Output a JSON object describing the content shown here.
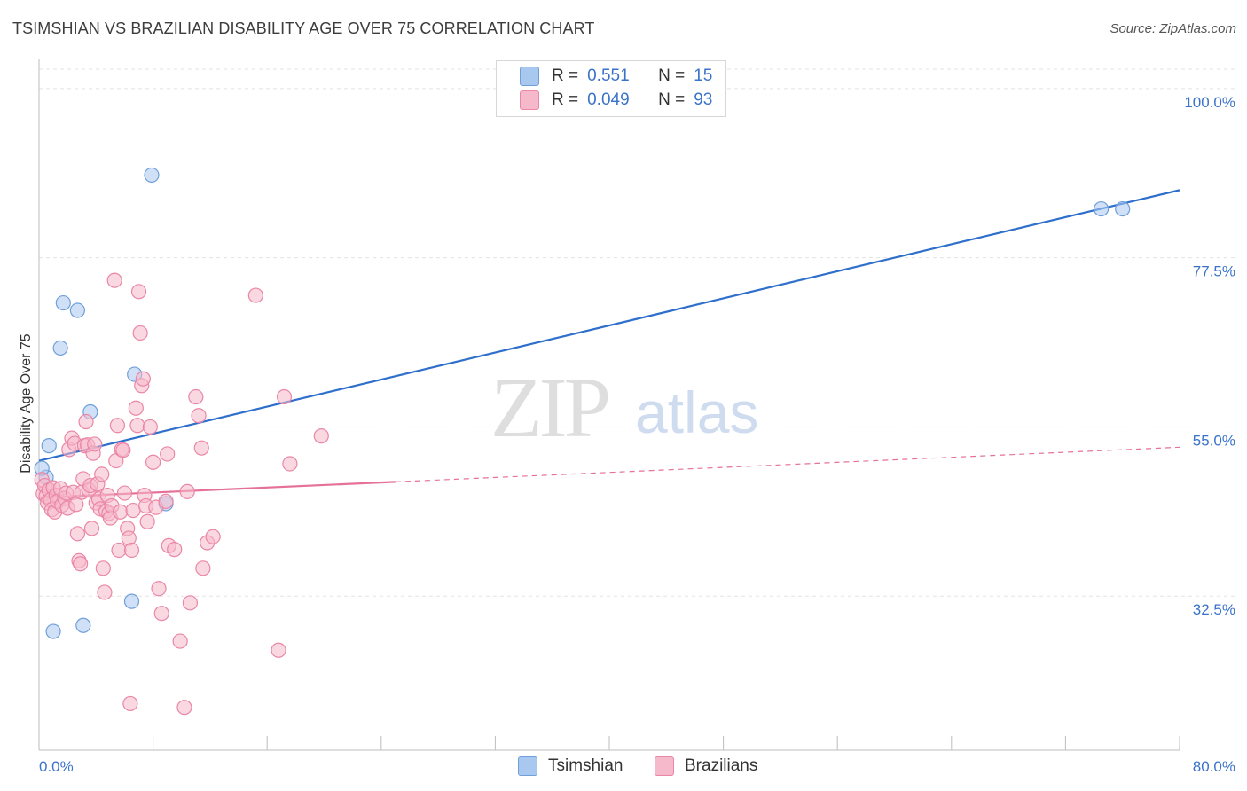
{
  "header": {
    "title": "TSIMSHIAN VS BRAZILIAN DISABILITY AGE OVER 75 CORRELATION CHART",
    "source": "Source: ZipAtlas.com"
  },
  "watermark": {
    "zip": "ZIP",
    "atlas": "atlas"
  },
  "legend": {
    "rows": [
      {
        "r_label": "R =",
        "r_value": "0.551",
        "n_label": "N =",
        "n_value": "15"
      },
      {
        "r_label": "R =",
        "r_value": "0.049",
        "n_label": "N =",
        "n_value": "93"
      }
    ]
  },
  "bottom_legend": [
    "Tsimshian",
    "Brazilians"
  ],
  "chart_data": {
    "type": "scatter",
    "title": "TSIMSHIAN VS BRAZILIAN DISABILITY AGE OVER 75 CORRELATION CHART",
    "ylabel": "Disability Age Over 75",
    "xlabel": "",
    "xlim": [
      0,
      80
    ],
    "ylim": [
      12,
      104
    ],
    "x_tick_labels": [
      "0.0%",
      "80.0%"
    ],
    "y_ticks": [
      32.5,
      55.0,
      77.5,
      100.0
    ],
    "y_tick_labels": [
      "32.5%",
      "55.0%",
      "77.5%",
      "100.0%"
    ],
    "grid": true,
    "colors": {
      "tsimshian_fill": "#a9c8f0",
      "tsimshian_stroke": "#6f9fd9",
      "tsimshian_line": "#2f6fcc",
      "brazilians_fill": "#f6b8cb",
      "brazilians_stroke": "#ea86a6",
      "brazilians_line": "#e5719a",
      "axis_label": "#3a73c9"
    },
    "series": [
      {
        "name": "Tsimshian",
        "r": 0.551,
        "n": 15,
        "trend": {
          "x": [
            0,
            80
          ],
          "y": [
            50.5,
            86.5
          ],
          "dashed_from": null
        },
        "points": [
          [
            0.5,
            48.3
          ],
          [
            0.7,
            52.5
          ],
          [
            1.0,
            27.8
          ],
          [
            1.5,
            65.5
          ],
          [
            1.7,
            71.5
          ],
          [
            2.7,
            70.5
          ],
          [
            3.1,
            28.6
          ],
          [
            3.6,
            57.0
          ],
          [
            6.5,
            31.8
          ],
          [
            6.7,
            62.0
          ],
          [
            7.9,
            88.5
          ],
          [
            8.9,
            44.8
          ],
          [
            74.5,
            84.0
          ],
          [
            76.0,
            84.0
          ],
          [
            0.2,
            49.5
          ]
        ]
      },
      {
        "name": "Brazilians",
        "r": 0.049,
        "n": 93,
        "trend": {
          "x": [
            0,
            80
          ],
          "y": [
            45.6,
            52.3
          ],
          "dashed_from": 25
        },
        "points": [
          [
            0.2,
            48.0
          ],
          [
            0.3,
            46.1
          ],
          [
            0.4,
            47.2
          ],
          [
            0.5,
            45.8
          ],
          [
            0.6,
            44.9
          ],
          [
            0.7,
            46.6
          ],
          [
            0.8,
            45.3
          ],
          [
            0.9,
            44.0
          ],
          [
            1.0,
            46.9
          ],
          [
            1.1,
            43.7
          ],
          [
            1.2,
            45.9
          ],
          [
            1.3,
            45.1
          ],
          [
            1.5,
            46.8
          ],
          [
            1.6,
            44.6
          ],
          [
            1.8,
            45.5
          ],
          [
            1.9,
            46.2
          ],
          [
            2.0,
            44.2
          ],
          [
            2.1,
            52.0
          ],
          [
            2.3,
            53.5
          ],
          [
            2.4,
            46.3
          ],
          [
            2.5,
            52.8
          ],
          [
            2.6,
            44.7
          ],
          [
            2.7,
            40.8
          ],
          [
            2.8,
            37.2
          ],
          [
            2.9,
            36.8
          ],
          [
            3.0,
            46.3
          ],
          [
            3.1,
            48.1
          ],
          [
            3.2,
            52.5
          ],
          [
            3.3,
            55.7
          ],
          [
            3.4,
            52.6
          ],
          [
            3.5,
            46.6
          ],
          [
            3.6,
            47.2
          ],
          [
            3.7,
            41.5
          ],
          [
            3.8,
            51.5
          ],
          [
            3.9,
            52.7
          ],
          [
            4.0,
            44.9
          ],
          [
            4.1,
            47.4
          ],
          [
            4.2,
            45.4
          ],
          [
            4.3,
            44.1
          ],
          [
            4.4,
            48.7
          ],
          [
            4.5,
            36.2
          ],
          [
            4.6,
            33.0
          ],
          [
            4.7,
            43.8
          ],
          [
            4.8,
            45.9
          ],
          [
            4.9,
            43.5
          ],
          [
            5.0,
            42.9
          ],
          [
            5.1,
            44.5
          ],
          [
            5.3,
            74.5
          ],
          [
            5.4,
            50.5
          ],
          [
            5.5,
            55.2
          ],
          [
            5.6,
            38.6
          ],
          [
            5.7,
            43.7
          ],
          [
            5.8,
            52.0
          ],
          [
            5.9,
            51.9
          ],
          [
            6.0,
            46.2
          ],
          [
            6.2,
            41.5
          ],
          [
            6.3,
            40.2
          ],
          [
            6.5,
            38.6
          ],
          [
            6.6,
            43.9
          ],
          [
            6.8,
            57.5
          ],
          [
            6.9,
            55.2
          ],
          [
            7.0,
            73.0
          ],
          [
            7.1,
            67.5
          ],
          [
            7.2,
            60.5
          ],
          [
            7.3,
            61.4
          ],
          [
            7.4,
            45.9
          ],
          [
            7.5,
            44.5
          ],
          [
            7.6,
            42.4
          ],
          [
            7.8,
            55.0
          ],
          [
            8.0,
            50.3
          ],
          [
            8.2,
            44.3
          ],
          [
            8.4,
            33.5
          ],
          [
            8.6,
            30.2
          ],
          [
            8.9,
            45.1
          ],
          [
            9.0,
            51.4
          ],
          [
            9.1,
            39.2
          ],
          [
            9.5,
            38.7
          ],
          [
            9.9,
            26.5
          ],
          [
            10.2,
            17.7
          ],
          [
            10.4,
            46.4
          ],
          [
            10.6,
            31.6
          ],
          [
            11.0,
            59.0
          ],
          [
            11.2,
            56.5
          ],
          [
            11.4,
            52.2
          ],
          [
            11.5,
            36.2
          ],
          [
            11.8,
            39.6
          ],
          [
            12.2,
            40.4
          ],
          [
            15.2,
            72.5
          ],
          [
            17.2,
            59.0
          ],
          [
            17.6,
            50.1
          ],
          [
            19.8,
            53.8
          ],
          [
            16.8,
            25.3
          ],
          [
            6.4,
            18.2
          ]
        ]
      }
    ]
  }
}
